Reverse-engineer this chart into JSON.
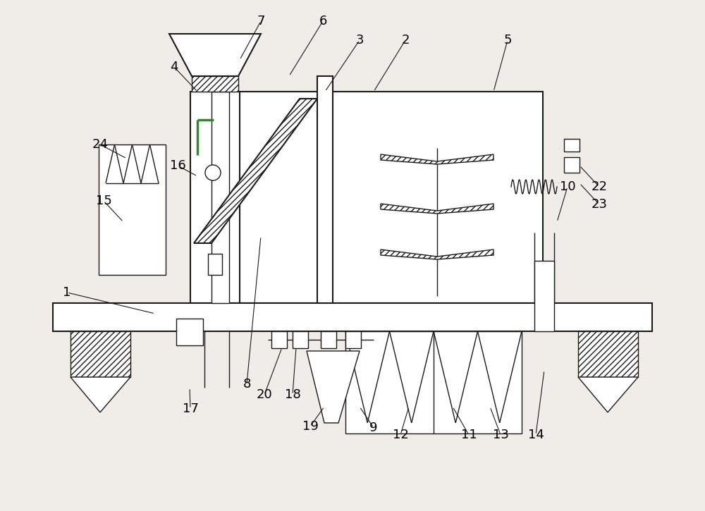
{
  "bg_color": "#f0ede8",
  "line_color": "#1a1a1a",
  "fig_w": 10.0,
  "fig_h": 7.25,
  "dpi": 100
}
